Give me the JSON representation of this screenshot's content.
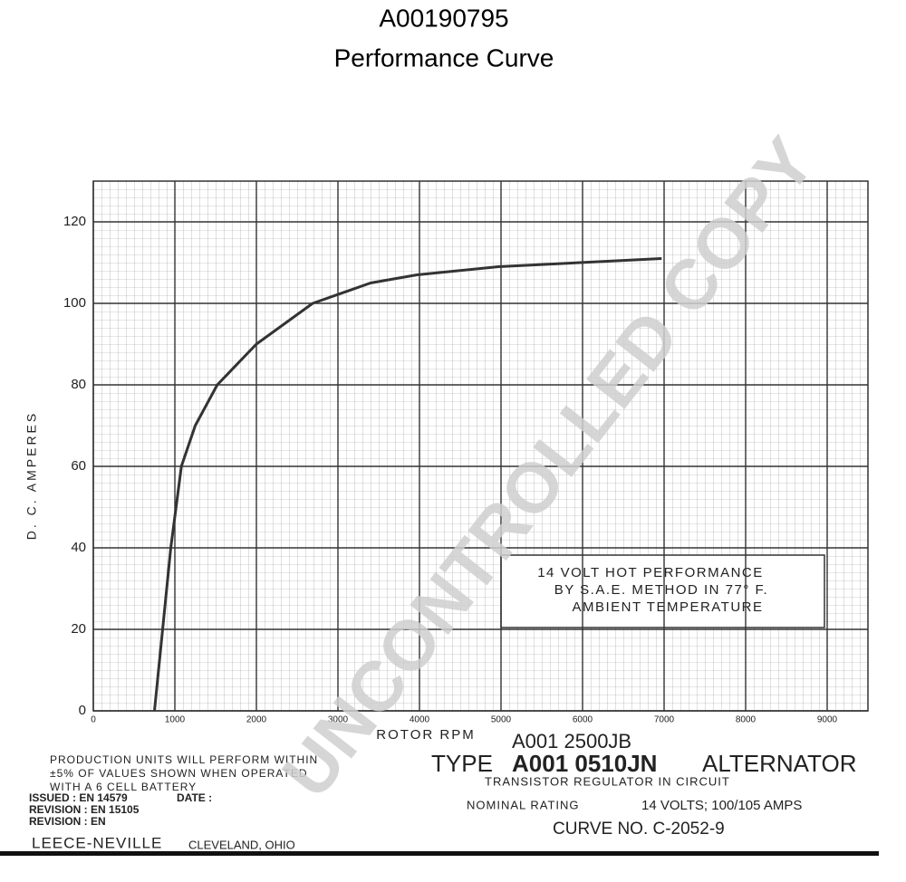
{
  "chart_data": {
    "type": "line",
    "title": "A00190795",
    "subtitle": "Performance Curve",
    "x_label": "ROTOR RPM",
    "y_label": "D. C. AMPERES",
    "x": [
      750,
      850,
      950,
      1080,
      1250,
      1520,
      2000,
      2690,
      3400,
      3970,
      4970,
      5970,
      6970
    ],
    "series": [
      {
        "name": "14 VOLT HOT PERFORMANCE",
        "color": "#333333",
        "values": [
          0,
          20,
          40,
          60,
          70,
          80,
          90,
          100,
          105,
          107,
          109,
          110,
          111
        ]
      }
    ],
    "xlim": [
      0,
      9500
    ],
    "xticks": [
      0,
      1000,
      2000,
      3000,
      4000,
      5000,
      6000,
      7000,
      8000,
      9000
    ],
    "ylim": [
      0,
      130
    ],
    "yticks": [
      0,
      20,
      40,
      60,
      80,
      100,
      120
    ],
    "grid": true,
    "annotations": [
      "14 VOLT HOT PERFORMANCE",
      "BY S.A.E. METHOD IN 77° F.",
      "AMBIENT TEMPERATURE",
      "A001 2500JB",
      "TYPE",
      "A001 0510JN",
      "ALTERNATOR",
      "TRANSISTOR REGULATOR IN CIRCUIT",
      "NOMINAL RATING",
      "14 VOLTS; 100/105 AMPS",
      "CURVE NO. C-2052-9",
      "PRODUCTION UNITS WILL PERFORM WITHIN",
      "±5% OF VALUES SHOWN WHEN OPERATED",
      "WITH A 6 CELL BATTERY",
      "ISSUED : EN 14579",
      "DATE :",
      "REVISION : EN 15105",
      "REVISION : EN",
      "LEECE-NEVILLE",
      "CLEVELAND, OHIO",
      "UNCONTROLLED COPY"
    ]
  }
}
